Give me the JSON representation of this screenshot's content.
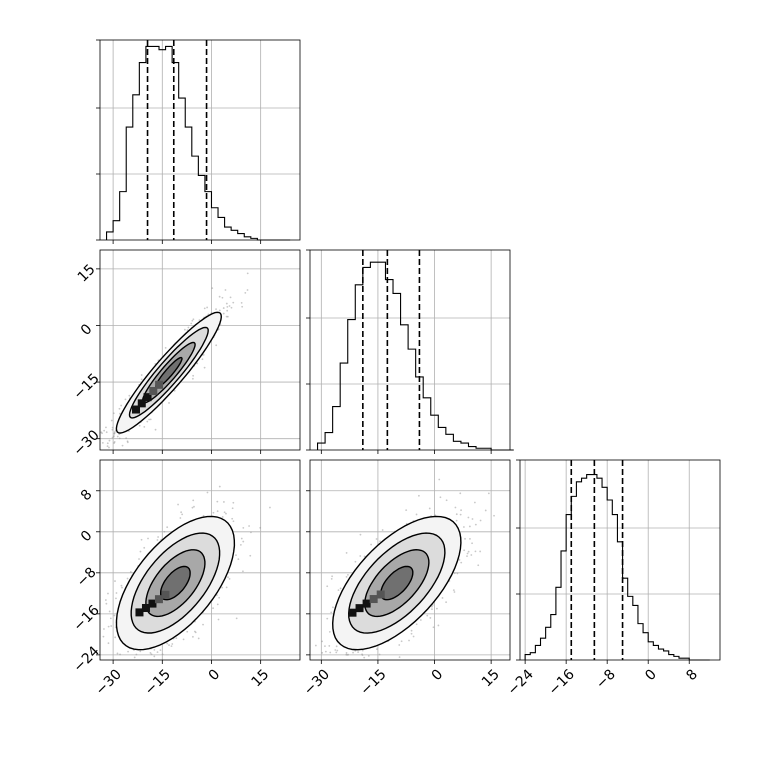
{
  "chart_data": {
    "type": "corner",
    "title": "",
    "grid": true,
    "parameters": [
      {
        "label": "",
        "range": [
          -34,
          27
        ],
        "ticks": [
          -30,
          -15,
          0,
          15
        ],
        "quantiles": [
          -19.5,
          -11.5,
          -1.5
        ]
      },
      {
        "label": "",
        "range": [
          -33,
          20
        ],
        "ticks": [
          -30,
          -15,
          0,
          15
        ],
        "quantiles": [
          -19.0,
          -12.5,
          -4.0
        ]
      },
      {
        "label": "",
        "range": [
          -25,
          14
        ],
        "ticks": [
          -24,
          -16,
          -8,
          0,
          8
        ],
        "quantiles": [
          -15.0,
          -10.5,
          -5.0
        ]
      }
    ],
    "histograms": [
      {
        "param": 0,
        "bin_edges": [
          -32,
          -30,
          -28,
          -26,
          -24,
          -22,
          -20,
          -18,
          -16,
          -14,
          -12,
          -10,
          -8,
          -6,
          -4,
          -2,
          0,
          2,
          4,
          6,
          8,
          10,
          12,
          14,
          16,
          18,
          20,
          22,
          24
        ],
        "counts": [
          5,
          12,
          30,
          70,
          90,
          110,
          120,
          120,
          118,
          120,
          110,
          88,
          70,
          52,
          40,
          30,
          20,
          14,
          8,
          6,
          4,
          2,
          1,
          0,
          0,
          0,
          0,
          0
        ],
        "ymax": 124
      },
      {
        "param": 1,
        "bin_edges": [
          -31,
          -29,
          -27,
          -25,
          -23,
          -21,
          -19,
          -17,
          -15,
          -13,
          -11,
          -9,
          -7,
          -5,
          -3,
          -1,
          1,
          3,
          5,
          7,
          9,
          11,
          13,
          15,
          17,
          19,
          21
        ],
        "counts": [
          4,
          10,
          25,
          50,
          75,
          95,
          105,
          108,
          108,
          98,
          90,
          72,
          58,
          42,
          30,
          20,
          13,
          9,
          5,
          4,
          2,
          1,
          1,
          0,
          0,
          0
        ],
        "ymax": 115
      },
      {
        "param": 2,
        "bin_edges": [
          -24,
          -23,
          -22,
          -21,
          -20,
          -19,
          -18,
          -17,
          -16,
          -15,
          -14,
          -13,
          -12,
          -11,
          -10,
          -9,
          -8,
          -7,
          -6,
          -5,
          -4,
          -3,
          -2,
          -1,
          0,
          1,
          2,
          3,
          4,
          5,
          6,
          7,
          8,
          9,
          10,
          11,
          12
        ],
        "counts": [
          3,
          4,
          8,
          12,
          18,
          25,
          40,
          60,
          80,
          90,
          98,
          100,
          102,
          102,
          100,
          95,
          88,
          80,
          65,
          45,
          35,
          30,
          20,
          15,
          10,
          8,
          6,
          5,
          3,
          2,
          1,
          1,
          0,
          0,
          0,
          0
        ],
        "ymax": 110
      }
    ],
    "pairs": [
      {
        "x_param": 0,
        "y_param": 1,
        "center": [
          -13,
          -12.5
        ],
        "sigma": [
          8,
          8
        ],
        "rho": 0.93,
        "mode": [
          -19.5,
          -19
        ],
        "contour_levels_sigma": [
          0.5,
          1.0,
          1.5,
          2.0
        ]
      },
      {
        "x_param": 0,
        "y_param": 2,
        "center": [
          -11,
          -10
        ],
        "sigma": [
          9,
          6.5
        ],
        "rho": 0.6,
        "mode": [
          -18,
          -14
        ],
        "contour_levels_sigma": [
          0.5,
          1.0,
          1.5,
          2.0
        ]
      },
      {
        "x_param": 1,
        "y_param": 2,
        "center": [
          -10,
          -10
        ],
        "sigma": [
          8.5,
          6.5
        ],
        "rho": 0.62,
        "mode": [
          -18,
          -14
        ],
        "contour_levels_sigma": [
          0.5,
          1.0,
          1.5,
          2.0
        ]
      }
    ],
    "colors": {
      "line": "#000000",
      "points": "#9a9a9a",
      "grid": "#b0b0b0"
    }
  }
}
